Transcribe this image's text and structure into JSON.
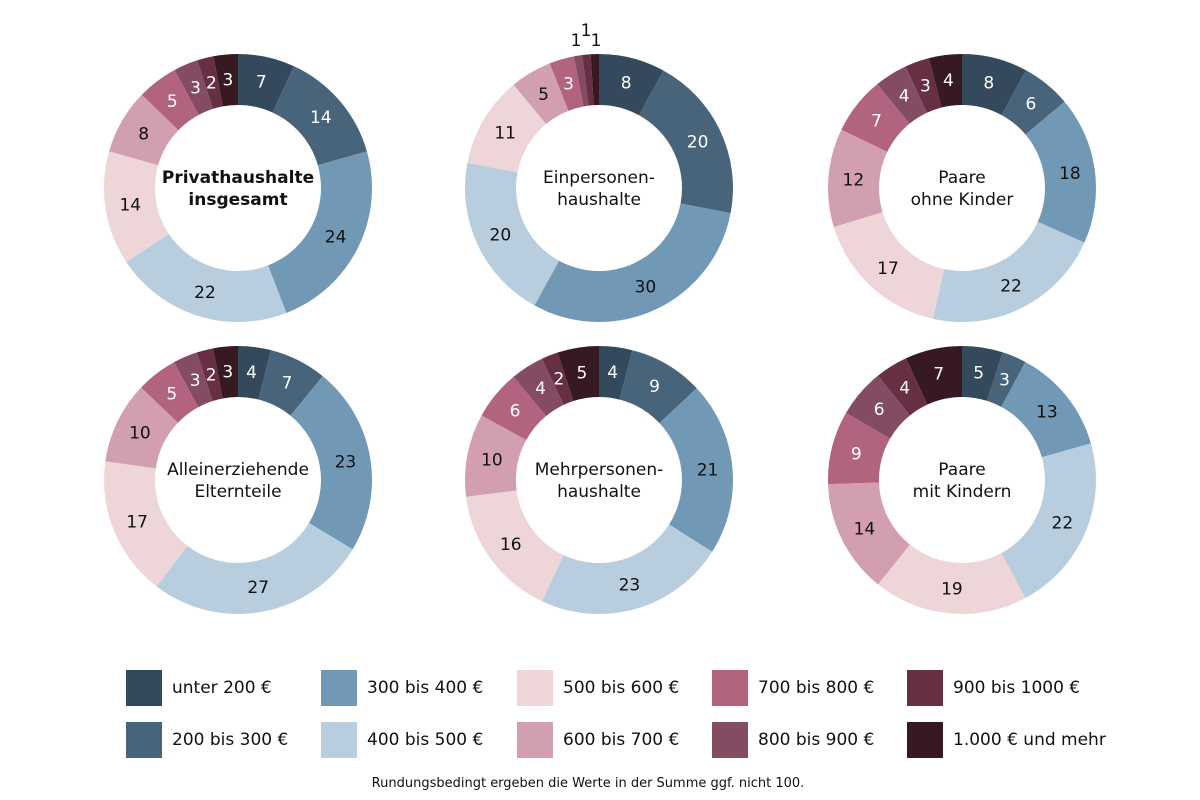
{
  "chart_data": [
    {
      "type": "pie",
      "title": "Privathaushalte insgesamt",
      "title_bold": true,
      "categories": [
        "unter 200 €",
        "200 bis 300 €",
        "300 bis 400 €",
        "400 bis 500 €",
        "500 bis 600 €",
        "600 bis 700 €",
        "700 bis 800 €",
        "800 bis 900 €",
        "900 bis 1000 €",
        "1.000 € und mehr"
      ],
      "values": [
        7,
        14,
        24,
        22,
        14,
        8,
        5,
        3,
        2,
        3
      ]
    },
    {
      "type": "pie",
      "title": "Einpersonen-\nhaushalte",
      "title_bold": false,
      "categories": [
        "unter 200 €",
        "200 bis 300 €",
        "300 bis 400 €",
        "400 bis 500 €",
        "500 bis 600 €",
        "600 bis 700 €",
        "700 bis 800 €",
        "800 bis 900 €",
        "900 bis 1000 €",
        "1.000 € und mehr"
      ],
      "values": [
        8,
        20,
        30,
        20,
        11,
        5,
        3,
        1,
        1,
        1
      ]
    },
    {
      "type": "pie",
      "title": "Paare\nohne Kinder",
      "title_bold": false,
      "categories": [
        "unter 200 €",
        "200 bis 300 €",
        "300 bis 400 €",
        "400 bis 500 €",
        "500 bis 600 €",
        "600 bis 700 €",
        "700 bis 800 €",
        "800 bis 900 €",
        "900 bis 1000 €",
        "1.000 € und mehr"
      ],
      "values": [
        8,
        6,
        18,
        22,
        17,
        12,
        7,
        4,
        3,
        4
      ]
    },
    {
      "type": "pie",
      "title": "Alleinerziehende\nElternteile",
      "title_bold": false,
      "categories": [
        "unter 200 €",
        "200 bis 300 €",
        "300 bis 400 €",
        "400 bis 500 €",
        "500 bis 600 €",
        "600 bis 700 €",
        "700 bis 800 €",
        "800 bis 900 €",
        "900 bis 1000 €",
        "1.000 € und mehr"
      ],
      "values": [
        4,
        7,
        23,
        27,
        17,
        10,
        5,
        3,
        2,
        3
      ]
    },
    {
      "type": "pie",
      "title": "Mehrpersonen-\nhaushalte",
      "title_bold": false,
      "categories": [
        "unter 200 €",
        "200 bis 300 €",
        "300 bis 400 €",
        "400 bis 500 €",
        "500 bis 600 €",
        "600 bis 700 €",
        "700 bis 800 €",
        "800 bis 900 €",
        "900 bis 1000 €",
        "1.000 € und mehr"
      ],
      "values": [
        4,
        9,
        21,
        23,
        16,
        10,
        6,
        4,
        2,
        5
      ]
    },
    {
      "type": "pie",
      "title": "Paare\nmit Kindern",
      "title_bold": false,
      "categories": [
        "unter 200 €",
        "200 bis 300 €",
        "300 bis 400 €",
        "400 bis 500 €",
        "500 bis 600 €",
        "600 bis 700 €",
        "700 bis 800 €",
        "800 bis 900 €",
        "900 bis 1000 €",
        "1.000 € und mehr"
      ],
      "values": [
        5,
        3,
        13,
        22,
        19,
        14,
        9,
        6,
        4,
        7
      ]
    }
  ],
  "series_colors": [
    "#344a5c",
    "#48647a",
    "#7199b6",
    "#b8cddd",
    "#eed6d8",
    "#d29fb1",
    "#b2637f",
    "#844c62",
    "#662f44",
    "#371922"
  ],
  "label_light": [
    true,
    true,
    false,
    false,
    false,
    false,
    true,
    true,
    true,
    true
  ],
  "legend": [
    {
      "label": "unter 200 €"
    },
    {
      "label": "200 bis 300 €"
    },
    {
      "label": "300 bis 400 €"
    },
    {
      "label": "400 bis 500 €"
    },
    {
      "label": "500 bis 600 €"
    },
    {
      "label": "600 bis 700 €"
    },
    {
      "label": "700 bis 800 €"
    },
    {
      "label": "800 bis 900 €"
    },
    {
      "label": "900 bis 1000 €"
    },
    {
      "label": "1.000 € und mehr"
    }
  ],
  "footnote": "Rundungsbedingt ergeben die Werte in der Summe ggf. nicht 100."
}
